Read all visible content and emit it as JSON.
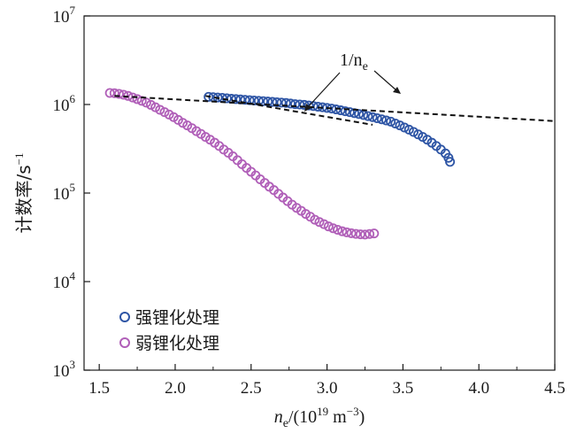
{
  "chart_data": {
    "type": "scatter",
    "title": "",
    "xlabel": "n_e/(10^19 m^-3)",
    "xlabel_parts": {
      "var": "n",
      "sub": "e",
      "pre": "/(10",
      "exp1": "19",
      "unit": " m",
      "exp2": "−3",
      "post": ")"
    },
    "ylabel": "计数率/s⁻¹",
    "ylabel_parts": {
      "main": "计数率/s",
      "exp": "−1"
    },
    "xlim": [
      1.4,
      4.5
    ],
    "ylim_log10": [
      3,
      7
    ],
    "yscale": "log",
    "x_ticks": [
      1.5,
      2.0,
      2.5,
      3.0,
      3.5,
      4.0,
      4.5
    ],
    "x_tick_labels": [
      "1.5",
      "2.0",
      "2.5",
      "3.0",
      "3.5",
      "4.0",
      "4.5"
    ],
    "y_ticks_exp": [
      3,
      4,
      5,
      6,
      7
    ],
    "y_tick_labels": [
      {
        "base": "10",
        "exp": "3"
      },
      {
        "base": "10",
        "exp": "4"
      },
      {
        "base": "10",
        "exp": "5"
      },
      {
        "base": "10",
        "exp": "6"
      },
      {
        "base": "10",
        "exp": "7"
      }
    ],
    "legend_position": "bottom-left",
    "series": [
      {
        "name": "强锂化处理",
        "color": "#2e55a5",
        "marker": "open-circle",
        "x": [
          2.22,
          2.25,
          2.28,
          2.31,
          2.34,
          2.37,
          2.4,
          2.43,
          2.46,
          2.49,
          2.52,
          2.55,
          2.58,
          2.61,
          2.64,
          2.67,
          2.7,
          2.73,
          2.76,
          2.79,
          2.82,
          2.85,
          2.88,
          2.91,
          2.94,
          2.97,
          3.0,
          3.03,
          3.06,
          3.09,
          3.12,
          3.15,
          3.18,
          3.21,
          3.24,
          3.27,
          3.3,
          3.33,
          3.36,
          3.39,
          3.42,
          3.45,
          3.48,
          3.51,
          3.54,
          3.57,
          3.6,
          3.63,
          3.66,
          3.69,
          3.72,
          3.75,
          3.78,
          3.8,
          3.81
        ],
        "y": [
          1220000,
          1210000,
          1200000,
          1190000,
          1175000,
          1160000,
          1150000,
          1140000,
          1130000,
          1120000,
          1110000,
          1100000,
          1090000,
          1080000,
          1070000,
          1060000,
          1050000,
          1040000,
          1025000,
          1010000,
          1000000,
          990000,
          975000,
          960000,
          945000,
          930000,
          915000,
          900000,
          880000,
          860000,
          840000,
          820000,
          800000,
          780000,
          760000,
          740000,
          720000,
          700000,
          680000,
          660000,
          640000,
          610000,
          580000,
          550000,
          520000,
          490000,
          460000,
          430000,
          400000,
          370000,
          340000,
          310000,
          280000,
          250000,
          225000
        ]
      },
      {
        "name": "弱锂化处理",
        "color": "#b05fb8",
        "marker": "open-circle",
        "x": [
          1.57,
          1.6,
          1.63,
          1.66,
          1.69,
          1.72,
          1.75,
          1.78,
          1.81,
          1.84,
          1.87,
          1.9,
          1.93,
          1.96,
          1.99,
          2.02,
          2.05,
          2.08,
          2.11,
          2.14,
          2.17,
          2.2,
          2.23,
          2.26,
          2.29,
          2.32,
          2.35,
          2.38,
          2.41,
          2.44,
          2.47,
          2.5,
          2.53,
          2.56,
          2.59,
          2.62,
          2.65,
          2.68,
          2.71,
          2.74,
          2.77,
          2.8,
          2.83,
          2.86,
          2.89,
          2.92,
          2.95,
          2.98,
          3.01,
          3.04,
          3.07,
          3.1,
          3.13,
          3.16,
          3.19,
          3.22,
          3.25,
          3.28,
          3.31
        ],
        "y": [
          1350000,
          1340000,
          1320000,
          1290000,
          1250000,
          1200000,
          1150000,
          1100000,
          1050000,
          990000,
          930000,
          870000,
          820000,
          770000,
          720000,
          670000,
          620000,
          580000,
          540000,
          500000,
          465000,
          430000,
          400000,
          370000,
          340000,
          310000,
          285000,
          260000,
          235000,
          212000,
          192000,
          174000,
          158000,
          143000,
          130000,
          118000,
          108000,
          98000,
          89000,
          81000,
          74000,
          68000,
          63000,
          58000,
          54000,
          50000,
          47000,
          44500,
          42000,
          40000,
          38500,
          37000,
          36000,
          35200,
          34600,
          34200,
          34000,
          34500,
          35000
        ]
      }
    ],
    "reference_lines": [
      {
        "name": "1/ne-fit-strong",
        "x": [
          2.2,
          3.3
        ],
        "y": [
          1250000,
          590000
        ],
        "style": "dashed"
      },
      {
        "name": "1/ne-fit-weak",
        "x": [
          1.6,
          4.5
        ],
        "y": [
          1250000,
          650000
        ],
        "style": "dashed"
      }
    ],
    "annotation": {
      "text_main": "1/n",
      "text_sub": "e"
    }
  }
}
